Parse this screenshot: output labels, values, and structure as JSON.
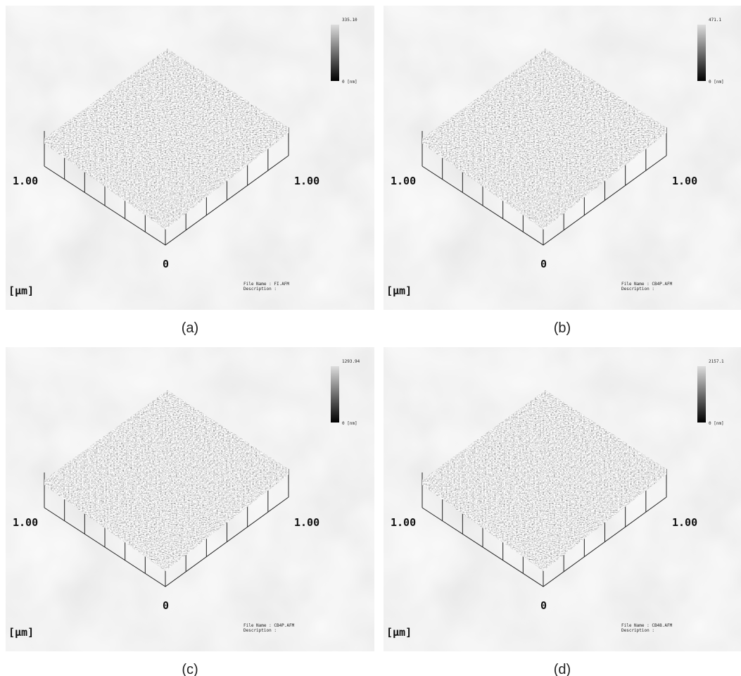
{
  "panels": [
    {
      "caption": "(a)",
      "scale_max": "335.10",
      "scale_min": "0 [nm]",
      "axis_left": "1.00",
      "axis_right": "1.00",
      "axis_origin": "0",
      "unit": "[μm]",
      "file_name": "File Name : FI.AFM",
      "description": "Description :"
    },
    {
      "caption": "(b)",
      "scale_max": "471.1",
      "scale_min": "0 [nm]",
      "axis_left": "1.00",
      "axis_right": "1.00",
      "axis_origin": "0",
      "unit": "[μm]",
      "file_name": "File Name : CB4P.AFM",
      "description": "Description :"
    },
    {
      "caption": "(c)",
      "scale_max": "1293.94",
      "scale_min": "0 [nm]",
      "axis_left": "1.00",
      "axis_right": "1.00",
      "axis_origin": "0",
      "unit": "[μm]",
      "file_name": "File Name : CB4P.AFM",
      "description": "Description :"
    },
    {
      "caption": "(d)",
      "scale_max": "2157.1",
      "scale_min": "0 [nm]",
      "axis_left": "1.00",
      "axis_right": "1.00",
      "axis_origin": "0",
      "unit": "[μm]",
      "file_name": "File Name : CB48.AFM",
      "description": "Description :"
    }
  ]
}
